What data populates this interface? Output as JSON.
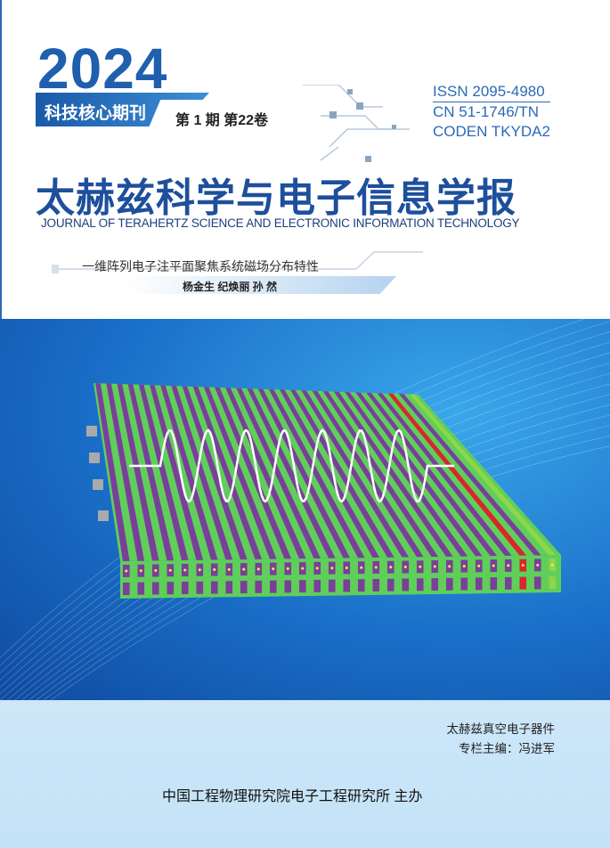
{
  "cover": {
    "year": "2024",
    "core_label": "科技核心期刊",
    "issue": "第 1 期  第22卷",
    "issn": "ISSN 2095-4980",
    "cn": "CN 51-1746/TN",
    "coden": "CODEN TKYDA2",
    "title": "太赫兹科学与电子信息学报",
    "english_title": "JOURNAL OF TERAHERTZ SCIENCE AND ELECTRONIC INFORMATION TECHNOLOGY",
    "featured_article": "一维阵列电子注平面聚焦系统磁场分布特性",
    "authors": "杨金生  纪焕丽  孙   然",
    "column_name": "太赫兹真空电子器件",
    "column_editor": "专栏主编：冯进军",
    "publisher": "中国工程物理研究院电子工程研究所  主办"
  },
  "colors": {
    "brand_blue": "#1d4f9c",
    "stripe_purple": "#7a3f9a",
    "stripe_green": "#5fcf5a",
    "stripe_red": "#d8262e"
  }
}
